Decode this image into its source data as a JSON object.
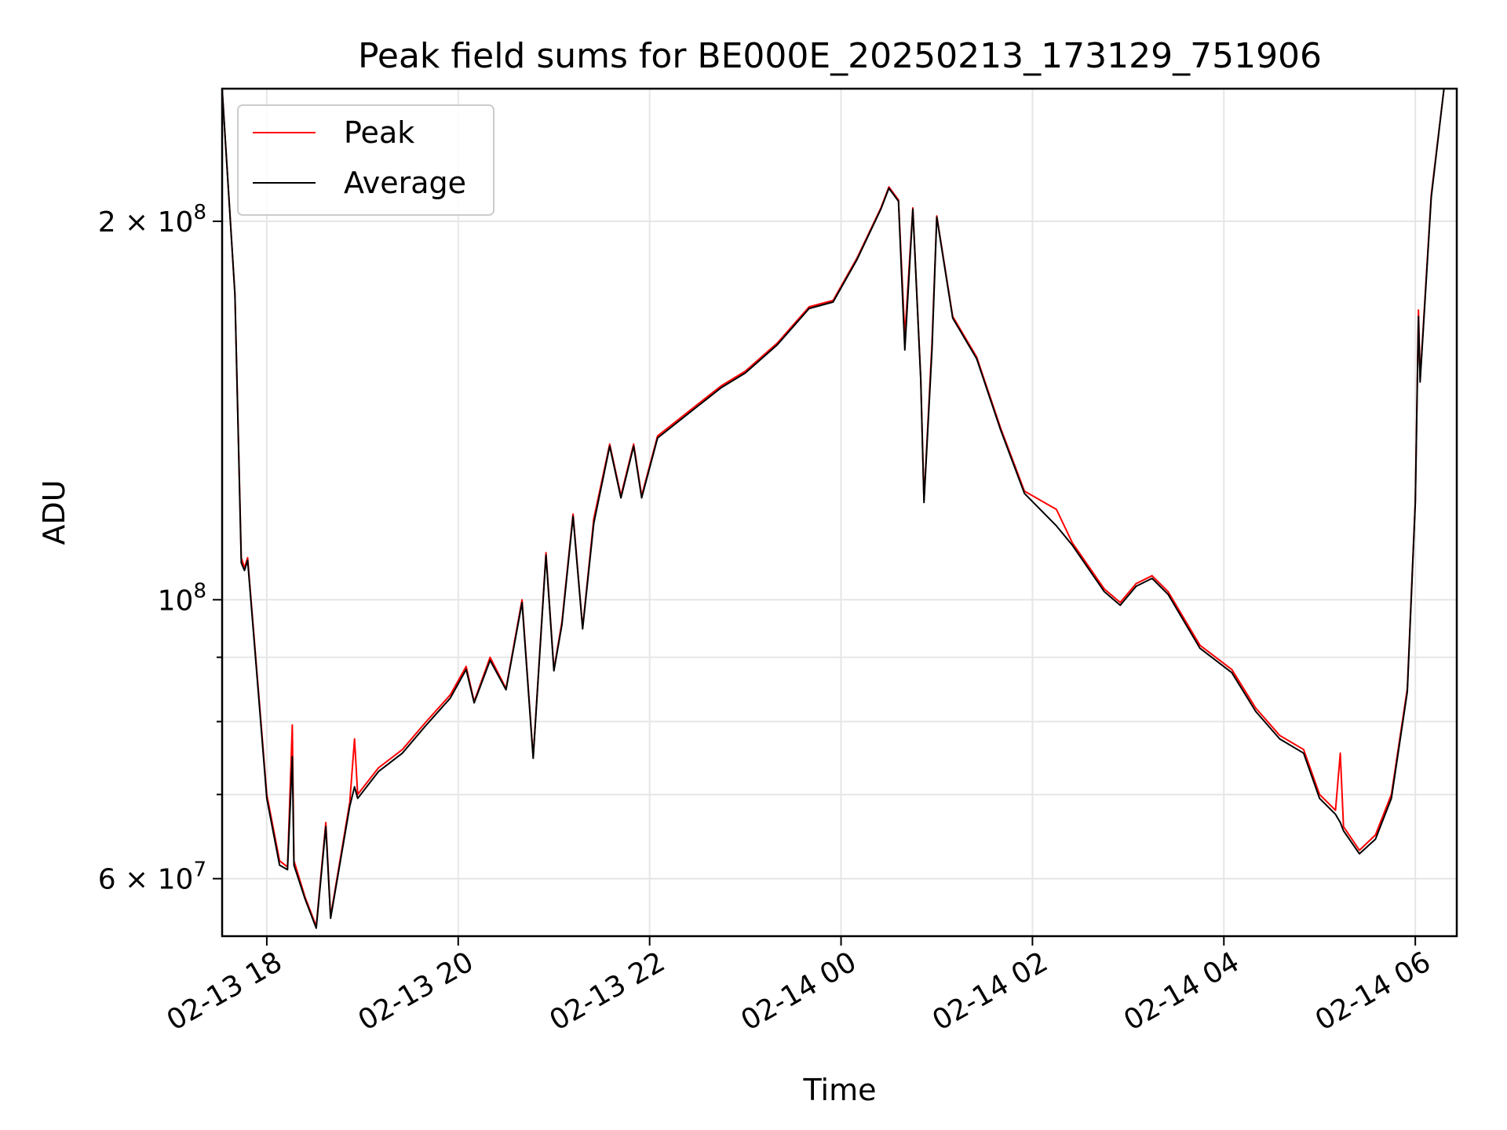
{
  "chart_data": {
    "type": "line",
    "title": "Peak field sums for BE000E_20250213_173129_751906",
    "xlabel": "Time",
    "ylabel": "ADU",
    "yscale": "log",
    "ylim": [
      54000000,
      255000000
    ],
    "xlim": [
      "2025-02-13 17:32",
      "2025-02-14 06:26"
    ],
    "grid": true,
    "legend_position": "upper-left",
    "x_ticks": [
      {
        "at": "2025-02-13 18:00",
        "label": "02-13 18"
      },
      {
        "at": "2025-02-13 20:00",
        "label": "02-13 20"
      },
      {
        "at": "2025-02-13 22:00",
        "label": "02-13 22"
      },
      {
        "at": "2025-02-14 00:00",
        "label": "02-14 00"
      },
      {
        "at": "2025-02-14 02:00",
        "label": "02-14 02"
      },
      {
        "at": "2025-02-14 04:00",
        "label": "02-14 04"
      },
      {
        "at": "2025-02-14 06:00",
        "label": "02-14 06"
      }
    ],
    "y_ticks": [
      {
        "value": 60000000,
        "base": "6 × 10",
        "exp": "7"
      },
      {
        "value": 100000000,
        "base": "10",
        "exp": "8"
      },
      {
        "value": 200000000,
        "base": "2 × 10",
        "exp": "8"
      }
    ],
    "y_minor_ticks": [
      70000000,
      80000000,
      90000000
    ],
    "series": [
      {
        "name": "Peak",
        "color": "#ff0000",
        "points": [
          [
            "2025-02-13 17:32",
            255000000
          ],
          [
            "2025-02-13 17:40",
            175000000
          ],
          [
            "2025-02-13 17:44",
            108000000
          ],
          [
            "2025-02-13 17:46",
            106000000
          ],
          [
            "2025-02-13 17:48",
            108000000
          ],
          [
            "2025-02-13 17:55",
            84000000
          ],
          [
            "2025-02-13 18:00",
            70000000
          ],
          [
            "2025-02-13 18:08",
            62000000
          ],
          [
            "2025-02-13 18:13",
            61300000
          ],
          [
            "2025-02-13 18:16",
            79500000
          ],
          [
            "2025-02-13 18:17",
            62000000
          ],
          [
            "2025-02-13 18:24",
            58000000
          ],
          [
            "2025-02-13 18:31",
            55000000
          ],
          [
            "2025-02-13 18:37",
            66500000
          ],
          [
            "2025-02-13 18:40",
            56000000
          ],
          [
            "2025-02-13 18:52",
            69000000
          ],
          [
            "2025-02-13 18:55",
            77500000
          ],
          [
            "2025-02-13 18:57",
            70000000
          ],
          [
            "2025-02-13 19:10",
            73500000
          ],
          [
            "2025-02-13 19:25",
            76000000
          ],
          [
            "2025-02-13 19:40",
            80000000
          ],
          [
            "2025-02-13 19:55",
            84000000
          ],
          [
            "2025-02-13 20:05",
            88500000
          ],
          [
            "2025-02-13 20:10",
            83000000
          ],
          [
            "2025-02-13 20:20",
            90000000
          ],
          [
            "2025-02-13 20:30",
            85000000
          ],
          [
            "2025-02-13 20:40",
            100000000
          ],
          [
            "2025-02-13 20:47",
            75000000
          ],
          [
            "2025-02-13 20:55",
            109000000
          ],
          [
            "2025-02-13 21:00",
            88000000
          ],
          [
            "2025-02-13 21:05",
            96000000
          ],
          [
            "2025-02-13 21:12",
            117000000
          ],
          [
            "2025-02-13 21:18",
            95000000
          ],
          [
            "2025-02-13 21:25",
            116000000
          ],
          [
            "2025-02-13 21:35",
            133000000
          ],
          [
            "2025-02-13 21:42",
            121000000
          ],
          [
            "2025-02-13 21:50",
            133000000
          ],
          [
            "2025-02-13 21:55",
            121000000
          ],
          [
            "2025-02-13 22:05",
            135000000
          ],
          [
            "2025-02-13 22:30",
            143000000
          ],
          [
            "2025-02-13 22:45",
            148000000
          ],
          [
            "2025-02-13 23:00",
            152000000
          ],
          [
            "2025-02-13 23:20",
            160000000
          ],
          [
            "2025-02-13 23:40",
            171000000
          ],
          [
            "2025-02-13 23:55",
            173000000
          ],
          [
            "2025-02-14 00:10",
            187000000
          ],
          [
            "2025-02-14 00:25",
            205000000
          ],
          [
            "2025-02-14 00:30",
            213000000
          ],
          [
            "2025-02-14 00:36",
            208000000
          ],
          [
            "2025-02-14 00:40",
            162000000
          ],
          [
            "2025-02-14 00:45",
            205000000
          ],
          [
            "2025-02-14 00:50",
            150000000
          ],
          [
            "2025-02-14 00:52",
            120000000
          ],
          [
            "2025-02-14 00:57",
            160000000
          ],
          [
            "2025-02-14 01:00",
            202000000
          ],
          [
            "2025-02-14 01:10",
            168000000
          ],
          [
            "2025-02-14 01:25",
            156000000
          ],
          [
            "2025-02-14 01:40",
            137000000
          ],
          [
            "2025-02-14 01:55",
            122000000
          ],
          [
            "2025-02-14 02:15",
            118000000
          ],
          [
            "2025-02-14 02:25",
            111000000
          ],
          [
            "2025-02-14 02:45",
            102000000
          ],
          [
            "2025-02-14 02:55",
            99500000
          ],
          [
            "2025-02-14 03:05",
            103000000
          ],
          [
            "2025-02-14 03:15",
            104500000
          ],
          [
            "2025-02-14 03:25",
            101500000
          ],
          [
            "2025-02-14 03:45",
            92000000
          ],
          [
            "2025-02-14 04:05",
            88000000
          ],
          [
            "2025-02-14 04:20",
            82000000
          ],
          [
            "2025-02-14 04:35",
            78000000
          ],
          [
            "2025-02-14 04:50",
            76000000
          ],
          [
            "2025-02-14 05:00",
            70000000
          ],
          [
            "2025-02-14 05:10",
            68000000
          ],
          [
            "2025-02-14 05:13",
            75500000
          ],
          [
            "2025-02-14 05:15",
            66000000
          ],
          [
            "2025-02-14 05:25",
            63200000
          ],
          [
            "2025-02-14 05:35",
            65000000
          ],
          [
            "2025-02-14 05:45",
            70000000
          ],
          [
            "2025-02-14 05:55",
            85000000
          ],
          [
            "2025-02-14 06:00",
            120000000
          ],
          [
            "2025-02-14 06:02",
            170000000
          ],
          [
            "2025-02-14 06:03",
            150000000
          ],
          [
            "2025-02-14 06:10",
            210000000
          ],
          [
            "2025-02-14 06:18",
            255000000
          ]
        ]
      },
      {
        "name": "Average",
        "color": "#000000",
        "points": [
          [
            "2025-02-13 17:32",
            255000000
          ],
          [
            "2025-02-13 17:40",
            175000000
          ],
          [
            "2025-02-13 17:44",
            107000000
          ],
          [
            "2025-02-13 17:46",
            105500000
          ],
          [
            "2025-02-13 17:48",
            107500000
          ],
          [
            "2025-02-13 17:55",
            83500000
          ],
          [
            "2025-02-13 18:00",
            69500000
          ],
          [
            "2025-02-13 18:08",
            61500000
          ],
          [
            "2025-02-13 18:13",
            61000000
          ],
          [
            "2025-02-13 18:16",
            75000000
          ],
          [
            "2025-02-13 18:17",
            61500000
          ],
          [
            "2025-02-13 18:24",
            57800000
          ],
          [
            "2025-02-13 18:31",
            54800000
          ],
          [
            "2025-02-13 18:37",
            66000000
          ],
          [
            "2025-02-13 18:40",
            55800000
          ],
          [
            "2025-02-13 18:52",
            68500000
          ],
          [
            "2025-02-13 18:55",
            71000000
          ],
          [
            "2025-02-13 18:57",
            69500000
          ],
          [
            "2025-02-13 19:10",
            73000000
          ],
          [
            "2025-02-13 19:25",
            75500000
          ],
          [
            "2025-02-13 19:40",
            79500000
          ],
          [
            "2025-02-13 19:55",
            83500000
          ],
          [
            "2025-02-13 20:05",
            88000000
          ],
          [
            "2025-02-13 20:10",
            82800000
          ],
          [
            "2025-02-13 20:20",
            89500000
          ],
          [
            "2025-02-13 20:30",
            84800000
          ],
          [
            "2025-02-13 20:40",
            99500000
          ],
          [
            "2025-02-13 20:47",
            74800000
          ],
          [
            "2025-02-13 20:55",
            108500000
          ],
          [
            "2025-02-13 21:00",
            87800000
          ],
          [
            "2025-02-13 21:05",
            95500000
          ],
          [
            "2025-02-13 21:12",
            116500000
          ],
          [
            "2025-02-13 21:18",
            94800000
          ],
          [
            "2025-02-13 21:25",
            115000000
          ],
          [
            "2025-02-13 21:35",
            132500000
          ],
          [
            "2025-02-13 21:42",
            120500000
          ],
          [
            "2025-02-13 21:50",
            132500000
          ],
          [
            "2025-02-13 21:55",
            120500000
          ],
          [
            "2025-02-13 22:05",
            134500000
          ],
          [
            "2025-02-13 22:30",
            142500000
          ],
          [
            "2025-02-13 22:45",
            147500000
          ],
          [
            "2025-02-13 23:00",
            151500000
          ],
          [
            "2025-02-13 23:20",
            159500000
          ],
          [
            "2025-02-13 23:40",
            170500000
          ],
          [
            "2025-02-13 23:55",
            172500000
          ],
          [
            "2025-02-14 00:10",
            186500000
          ],
          [
            "2025-02-14 00:25",
            204500000
          ],
          [
            "2025-02-14 00:30",
            212500000
          ],
          [
            "2025-02-14 00:36",
            207500000
          ],
          [
            "2025-02-14 00:40",
            158000000
          ],
          [
            "2025-02-14 00:45",
            204500000
          ],
          [
            "2025-02-14 00:50",
            149500000
          ],
          [
            "2025-02-14 00:52",
            119500000
          ],
          [
            "2025-02-14 00:57",
            158000000
          ],
          [
            "2025-02-14 01:00",
            201500000
          ],
          [
            "2025-02-14 01:10",
            167500000
          ],
          [
            "2025-02-14 01:25",
            155500000
          ],
          [
            "2025-02-14 01:40",
            136500000
          ],
          [
            "2025-02-14 01:55",
            121500000
          ],
          [
            "2025-02-14 02:15",
            114500000
          ],
          [
            "2025-02-14 02:25",
            110500000
          ],
          [
            "2025-02-14 02:45",
            101500000
          ],
          [
            "2025-02-14 02:55",
            99000000
          ],
          [
            "2025-02-14 03:05",
            102500000
          ],
          [
            "2025-02-14 03:15",
            104000000
          ],
          [
            "2025-02-14 03:25",
            101000000
          ],
          [
            "2025-02-14 03:45",
            91500000
          ],
          [
            "2025-02-14 04:05",
            87500000
          ],
          [
            "2025-02-14 04:20",
            81500000
          ],
          [
            "2025-02-14 04:35",
            77500000
          ],
          [
            "2025-02-14 04:50",
            75500000
          ],
          [
            "2025-02-14 05:00",
            69500000
          ],
          [
            "2025-02-14 05:10",
            67500000
          ],
          [
            "2025-02-14 05:13",
            66500000
          ],
          [
            "2025-02-14 05:15",
            65500000
          ],
          [
            "2025-02-14 05:25",
            62800000
          ],
          [
            "2025-02-14 05:35",
            64500000
          ],
          [
            "2025-02-14 05:45",
            69500000
          ],
          [
            "2025-02-14 05:55",
            84500000
          ],
          [
            "2025-02-14 06:00",
            119500000
          ],
          [
            "2025-02-14 06:02",
            168000000
          ],
          [
            "2025-02-14 06:03",
            149000000
          ],
          [
            "2025-02-14 06:10",
            209000000
          ],
          [
            "2025-02-14 06:18",
            255000000
          ]
        ]
      }
    ]
  }
}
